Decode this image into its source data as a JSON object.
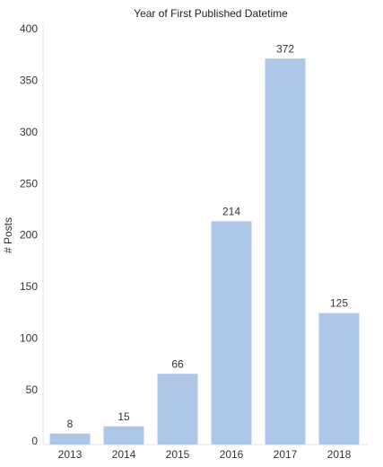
{
  "chart_data": {
    "type": "bar",
    "title": "Year of First Published Datetime",
    "y_label": "# Posts",
    "categories": [
      "2013",
      "2014",
      "2015",
      "2016",
      "2017",
      "2018"
    ],
    "values": [
      8,
      15,
      66,
      214,
      372,
      125
    ],
    "color": "#aec7e8",
    "ylim": [
      0,
      400
    ],
    "yticks": [
      0,
      50,
      100,
      150,
      200,
      250,
      300,
      350,
      400
    ],
    "grid": false,
    "data_labels": true
  }
}
